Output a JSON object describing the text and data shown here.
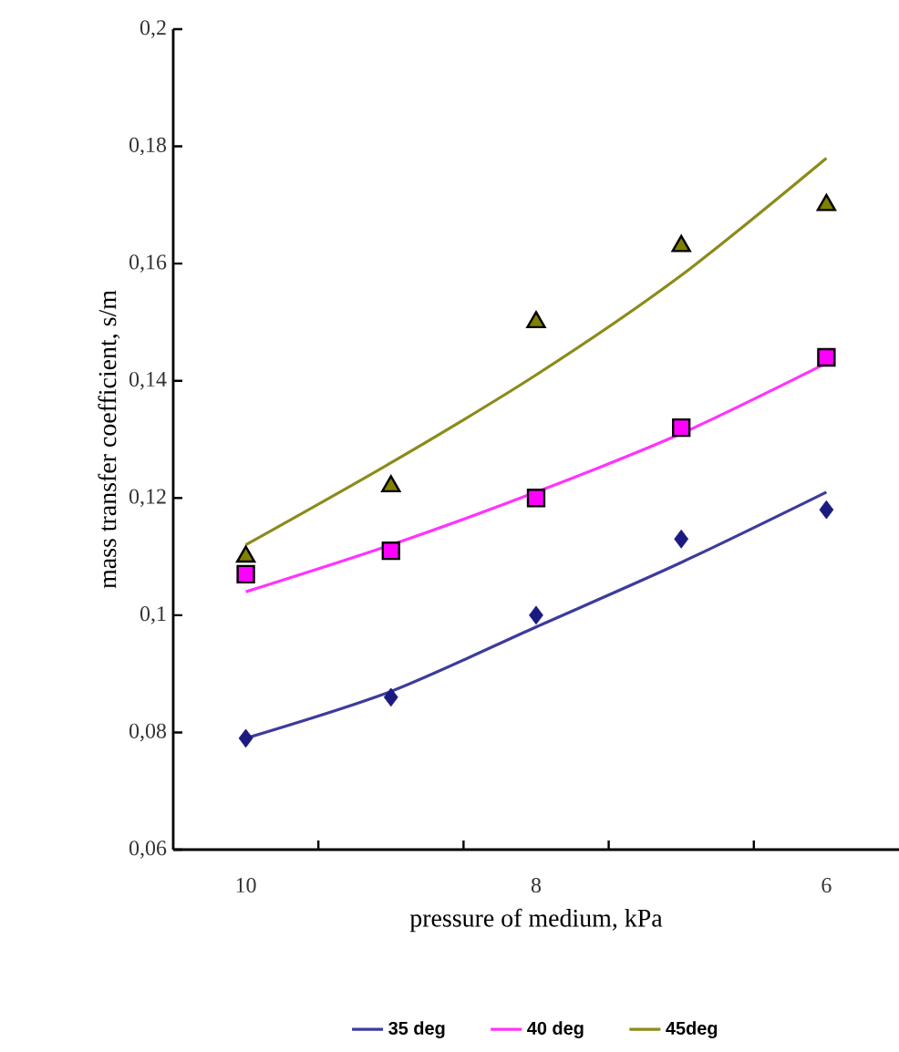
{
  "chart_data": {
    "type": "scatter",
    "xlabel": "pressure of medium, kPa",
    "ylabel": "mass transfer coefficient, s/m",
    "xlim": [
      10.5,
      5.5
    ],
    "ylim": [
      0.06,
      0.2
    ],
    "xticks": [
      10,
      {
        "value": 9.5,
        "label": null
      },
      {
        "value": 8.5,
        "label": null
      },
      8,
      {
        "value": 7.5,
        "label": null
      },
      {
        "value": 6.5,
        "label": null
      },
      6
    ],
    "yticks": [
      {
        "value": 0.06,
        "label": "0,06"
      },
      {
        "value": 0.08,
        "label": "0,08"
      },
      {
        "value": 0.1,
        "label": "0,1"
      },
      {
        "value": 0.12,
        "label": "0,12"
      },
      {
        "value": 0.14,
        "label": "0,14"
      },
      {
        "value": 0.16,
        "label": "0,16"
      },
      {
        "value": 0.18,
        "label": "0,18"
      },
      {
        "value": 0.2,
        "label": "0,2"
      }
    ],
    "legend": "bottom",
    "grid": false,
    "series": [
      {
        "name": "35 deg",
        "type": "line",
        "marker": "none",
        "color": "#3c3c9c",
        "x": [
          10,
          9,
          8,
          7,
          6
        ],
        "values": [
          0.079,
          0.087,
          0.098,
          0.109,
          0.121
        ]
      },
      {
        "name": "40 deg",
        "type": "line",
        "marker": "none",
        "color": "#ff33ff",
        "x": [
          10,
          9,
          8,
          7,
          6
        ],
        "values": [
          0.104,
          0.112,
          0.121,
          0.131,
          0.143
        ]
      },
      {
        "name": "45deg",
        "type": "line",
        "marker": "none",
        "color": "#8b8b1a",
        "x": [
          10,
          9,
          8,
          7,
          6
        ],
        "values": [
          0.112,
          0.126,
          0.141,
          0.158,
          0.178
        ]
      },
      {
        "marker": "diamond",
        "color": "#1a1a80",
        "x": [
          10,
          9,
          8,
          7,
          6
        ],
        "values": [
          0.079,
          0.086,
          0.1,
          0.113,
          0.118
        ]
      },
      {
        "marker": "square",
        "color": "#ff00ff",
        "x": [
          10,
          9,
          8,
          7,
          6
        ],
        "values": [
          0.107,
          0.111,
          0.12,
          0.132,
          0.144
        ]
      },
      {
        "marker": "triangle",
        "color": "#808000",
        "x": [
          10,
          9,
          8,
          7,
          6
        ],
        "values": [
          0.11,
          0.122,
          0.15,
          0.163,
          0.17
        ]
      }
    ]
  }
}
